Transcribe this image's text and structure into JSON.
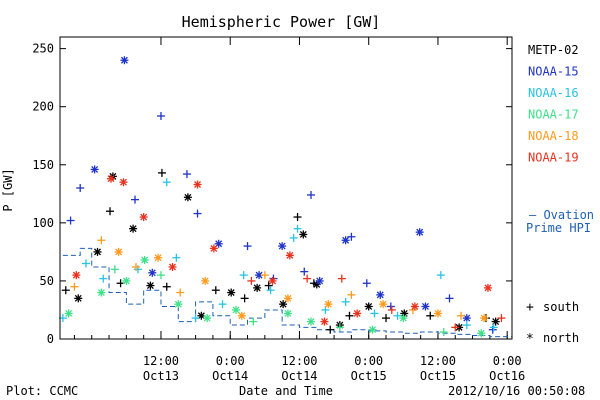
{
  "title": "Hemispheric Power [GW]",
  "footer_left": "Plot: CCMC",
  "footer_timestamp": "2012/10/16 00:50:08",
  "colors": {
    "METP-02": "#000000",
    "NOAA-15": "#1f34c8",
    "NOAA-16": "#29c3e6",
    "NOAA-17": "#3fe08a",
    "NOAA-18": "#ff9a1e",
    "NOAA-19": "#e8321e",
    "ovation": "#1f5fb4"
  },
  "legend_markers": [
    {
      "symbol": "+",
      "label": "south"
    },
    {
      "symbol": "*",
      "label": "north"
    }
  ],
  "ovation_legend": [
    "— Ovation",
    "Prime HPI"
  ],
  "chart_data": {
    "type": "scatter",
    "title": "Hemispheric Power [GW]",
    "ylabel": "P [GW]",
    "xlabel": "Date and Time",
    "ylim": [
      0,
      260
    ],
    "xlim": [
      "2012-10-12T18:30",
      "2012-10-16T00:50"
    ],
    "yticks": [
      0,
      50,
      100,
      150,
      200,
      250
    ],
    "xticks": [
      {
        "t": "2012-10-13T12:00",
        "l1": "12:00",
        "l2": "Oct13"
      },
      {
        "t": "2012-10-14T00:00",
        "l1": "0:00",
        "l2": "Oct14"
      },
      {
        "t": "2012-10-14T12:00",
        "l1": "12:00",
        "l2": "Oct14"
      },
      {
        "t": "2012-10-15T00:00",
        "l1": "0:00",
        "l2": "Oct15"
      },
      {
        "t": "2012-10-15T12:00",
        "l1": "12:00",
        "l2": "Oct15"
      },
      {
        "t": "2012-10-16T00:00",
        "l1": "0:00",
        "l2": "Oct16"
      }
    ],
    "legend_position": "right",
    "series": [
      {
        "name": "METP-02",
        "points": [
          [
            "2012-10-12T19:30",
            42,
            "s"
          ],
          [
            "2012-10-12T21:40",
            35,
            "n"
          ],
          [
            "2012-10-13T01:00",
            75,
            "n"
          ],
          [
            "2012-10-13T03:10",
            110,
            "s"
          ],
          [
            "2012-10-13T03:40",
            140,
            "n"
          ],
          [
            "2012-10-13T05:00",
            48,
            "s"
          ],
          [
            "2012-10-13T07:10",
            95,
            "n"
          ],
          [
            "2012-10-13T10:10",
            46,
            "n"
          ],
          [
            "2012-10-13T12:10",
            143,
            "s"
          ],
          [
            "2012-10-13T13:00",
            45,
            "s"
          ],
          [
            "2012-10-13T16:40",
            122,
            "n"
          ],
          [
            "2012-10-13T19:00",
            20,
            "n"
          ],
          [
            "2012-10-13T21:30",
            42,
            "s"
          ],
          [
            "2012-10-14T00:10",
            40,
            "n"
          ],
          [
            "2012-10-14T02:30",
            35,
            "s"
          ],
          [
            "2012-10-14T04:40",
            44,
            "n"
          ],
          [
            "2012-10-14T06:40",
            46,
            "s"
          ],
          [
            "2012-10-14T09:10",
            30,
            "n"
          ],
          [
            "2012-10-14T11:40",
            105,
            "s"
          ],
          [
            "2012-10-14T12:40",
            90,
            "n"
          ],
          [
            "2012-10-14T14:30",
            48,
            "s"
          ],
          [
            "2012-10-14T15:00",
            47,
            "n"
          ],
          [
            "2012-10-14T17:20",
            8,
            "s"
          ],
          [
            "2012-10-14T19:00",
            12,
            "n"
          ],
          [
            "2012-10-14T20:40",
            20,
            "s"
          ],
          [
            "2012-10-15T00:00",
            28,
            "n"
          ],
          [
            "2012-10-15T03:00",
            18,
            "s"
          ],
          [
            "2012-10-15T06:10",
            22,
            "n"
          ],
          [
            "2012-10-15T10:40",
            20,
            "s"
          ],
          [
            "2012-10-15T15:40",
            10,
            "n"
          ],
          [
            "2012-10-15T20:20",
            18,
            "s"
          ],
          [
            "2012-10-15T22:00",
            15,
            "n"
          ]
        ]
      },
      {
        "name": "NOAA-15",
        "points": [
          [
            "2012-10-12T20:20",
            102,
            "s"
          ],
          [
            "2012-10-12T22:00",
            130,
            "s"
          ],
          [
            "2012-10-13T00:30",
            146,
            "n"
          ],
          [
            "2012-10-13T05:40",
            240,
            "n"
          ],
          [
            "2012-10-13T07:30",
            120,
            "s"
          ],
          [
            "2012-10-13T10:30",
            57,
            "n"
          ],
          [
            "2012-10-13T12:00",
            192,
            "s"
          ],
          [
            "2012-10-13T16:30",
            142,
            "s"
          ],
          [
            "2012-10-13T18:20",
            108,
            "s"
          ],
          [
            "2012-10-13T22:00",
            82,
            "n"
          ],
          [
            "2012-10-14T03:00",
            80,
            "s"
          ],
          [
            "2012-10-14T05:00",
            55,
            "n"
          ],
          [
            "2012-10-14T07:30",
            52,
            "s"
          ],
          [
            "2012-10-14T09:00",
            80,
            "n"
          ],
          [
            "2012-10-14T12:50",
            58,
            "s"
          ],
          [
            "2012-10-14T14:00",
            124,
            "s"
          ],
          [
            "2012-10-14T15:30",
            50,
            "n"
          ],
          [
            "2012-10-14T20:00",
            85,
            "n"
          ],
          [
            "2012-10-14T21:00",
            88,
            "s"
          ],
          [
            "2012-10-14T23:40",
            48,
            "s"
          ],
          [
            "2012-10-15T02:00",
            38,
            "n"
          ],
          [
            "2012-10-15T03:50",
            28,
            "s"
          ],
          [
            "2012-10-15T08:50",
            92,
            "n"
          ],
          [
            "2012-10-15T09:50",
            28,
            "n"
          ],
          [
            "2012-10-15T14:00",
            35,
            "s"
          ],
          [
            "2012-10-15T17:00",
            18,
            "n"
          ],
          [
            "2012-10-15T21:30",
            8,
            "s"
          ]
        ]
      },
      {
        "name": "NOAA-16",
        "points": [
          [
            "2012-10-12T19:00",
            18,
            "s"
          ],
          [
            "2012-10-12T23:00",
            65,
            "s"
          ],
          [
            "2012-10-13T02:00",
            52,
            "s"
          ],
          [
            "2012-10-13T08:00",
            60,
            "s"
          ],
          [
            "2012-10-13T13:00",
            135,
            "s"
          ],
          [
            "2012-10-13T14:40",
            70,
            "s"
          ],
          [
            "2012-10-13T18:00",
            18,
            "s"
          ],
          [
            "2012-10-13T22:40",
            30,
            "s"
          ],
          [
            "2012-10-14T02:20",
            55,
            "s"
          ],
          [
            "2012-10-14T07:00",
            42,
            "s"
          ],
          [
            "2012-10-14T11:00",
            87,
            "s"
          ],
          [
            "2012-10-14T11:40",
            95,
            "s"
          ],
          [
            "2012-10-14T16:30",
            25,
            "s"
          ],
          [
            "2012-10-14T20:00",
            32,
            "s"
          ],
          [
            "2012-10-15T01:00",
            22,
            "s"
          ],
          [
            "2012-10-15T05:00",
            20,
            "s"
          ],
          [
            "2012-10-15T12:30",
            55,
            "s"
          ],
          [
            "2012-10-15T17:00",
            12,
            "s"
          ],
          [
            "2012-10-15T21:40",
            10,
            "s"
          ]
        ]
      },
      {
        "name": "NOAA-17",
        "points": [
          [
            "2012-10-12T20:00",
            22,
            "n"
          ],
          [
            "2012-10-13T01:40",
            40,
            "n"
          ],
          [
            "2012-10-13T04:00",
            60,
            "s"
          ],
          [
            "2012-10-13T06:00",
            50,
            "n"
          ],
          [
            "2012-10-13T09:10",
            68,
            "n"
          ],
          [
            "2012-10-13T12:00",
            55,
            "s"
          ],
          [
            "2012-10-13T15:00",
            30,
            "n"
          ],
          [
            "2012-10-13T20:00",
            18,
            "n"
          ],
          [
            "2012-10-14T01:00",
            25,
            "n"
          ],
          [
            "2012-10-14T04:00",
            15,
            "s"
          ],
          [
            "2012-10-14T10:00",
            22,
            "n"
          ],
          [
            "2012-10-14T14:00",
            15,
            "n"
          ],
          [
            "2012-10-14T19:00",
            10,
            "s"
          ],
          [
            "2012-10-15T00:40",
            8,
            "n"
          ],
          [
            "2012-10-15T06:00",
            18,
            "n"
          ],
          [
            "2012-10-15T13:00",
            6,
            "s"
          ],
          [
            "2012-10-15T19:30",
            5,
            "n"
          ]
        ]
      },
      {
        "name": "NOAA-18",
        "points": [
          [
            "2012-10-12T21:00",
            45,
            "s"
          ],
          [
            "2012-10-13T01:40",
            85,
            "s"
          ],
          [
            "2012-10-13T04:40",
            75,
            "n"
          ],
          [
            "2012-10-13T07:40",
            62,
            "s"
          ],
          [
            "2012-10-13T11:30",
            70,
            "n"
          ],
          [
            "2012-10-13T15:20",
            40,
            "s"
          ],
          [
            "2012-10-13T19:40",
            50,
            "n"
          ],
          [
            "2012-10-14T02:00",
            20,
            "n"
          ],
          [
            "2012-10-14T06:00",
            55,
            "s"
          ],
          [
            "2012-10-14T10:00",
            35,
            "n"
          ],
          [
            "2012-10-14T17:00",
            30,
            "n"
          ],
          [
            "2012-10-14T21:00",
            38,
            "s"
          ],
          [
            "2012-10-15T02:30",
            30,
            "n"
          ],
          [
            "2012-10-15T07:40",
            25,
            "s"
          ],
          [
            "2012-10-15T12:00",
            22,
            "n"
          ],
          [
            "2012-10-15T16:00",
            20,
            "s"
          ],
          [
            "2012-10-15T20:00",
            18,
            "n"
          ]
        ]
      },
      {
        "name": "NOAA-19",
        "points": [
          [
            "2012-10-12T21:20",
            55,
            "n"
          ],
          [
            "2012-10-13T03:20",
            138,
            "n"
          ],
          [
            "2012-10-13T05:30",
            135,
            "n"
          ],
          [
            "2012-10-13T09:00",
            105,
            "n"
          ],
          [
            "2012-10-13T14:00",
            62,
            "n"
          ],
          [
            "2012-10-13T18:20",
            133,
            "n"
          ],
          [
            "2012-10-13T21:10",
            78,
            "n"
          ],
          [
            "2012-10-14T03:40",
            50,
            "s"
          ],
          [
            "2012-10-14T07:20",
            50,
            "n"
          ],
          [
            "2012-10-14T10:20",
            72,
            "n"
          ],
          [
            "2012-10-14T13:20",
            52,
            "s"
          ],
          [
            "2012-10-14T16:20",
            15,
            "n"
          ],
          [
            "2012-10-14T19:20",
            52,
            "s"
          ],
          [
            "2012-10-14T22:00",
            22,
            "n"
          ],
          [
            "2012-10-15T04:00",
            25,
            "s"
          ],
          [
            "2012-10-15T08:00",
            28,
            "n"
          ],
          [
            "2012-10-15T15:00",
            10,
            "s"
          ],
          [
            "2012-10-15T20:40",
            44,
            "n"
          ],
          [
            "2012-10-15T23:00",
            18,
            "s"
          ]
        ]
      },
      {
        "name": "Ovation Prime HPI",
        "style": "step-dashed",
        "points": [
          [
            "2012-10-12T19:00",
            72
          ],
          [
            "2012-10-12T22:00",
            78
          ],
          [
            "2012-10-13T00:00",
            62
          ],
          [
            "2012-10-13T03:00",
            40
          ],
          [
            "2012-10-13T06:00",
            30
          ],
          [
            "2012-10-13T09:00",
            42
          ],
          [
            "2012-10-13T12:00",
            28
          ],
          [
            "2012-10-13T15:00",
            15
          ],
          [
            "2012-10-13T18:00",
            32
          ],
          [
            "2012-10-13T21:00",
            20
          ],
          [
            "2012-10-14T00:00",
            12
          ],
          [
            "2012-10-14T03:00",
            18
          ],
          [
            "2012-10-14T06:00",
            25
          ],
          [
            "2012-10-14T09:00",
            12
          ],
          [
            "2012-10-14T12:00",
            10
          ],
          [
            "2012-10-14T15:00",
            8
          ],
          [
            "2012-10-14T18:00",
            6
          ],
          [
            "2012-10-14T21:00",
            8
          ],
          [
            "2012-10-15T00:00",
            7
          ],
          [
            "2012-10-15T03:00",
            6
          ],
          [
            "2012-10-15T06:00",
            5
          ],
          [
            "2012-10-15T09:00",
            6
          ],
          [
            "2012-10-15T12:00",
            5
          ],
          [
            "2012-10-15T15:00",
            4
          ],
          [
            "2012-10-15T18:00",
            3
          ],
          [
            "2012-10-15T21:00",
            2
          ],
          [
            "2012-10-16T00:00",
            2
          ]
        ]
      }
    ]
  }
}
